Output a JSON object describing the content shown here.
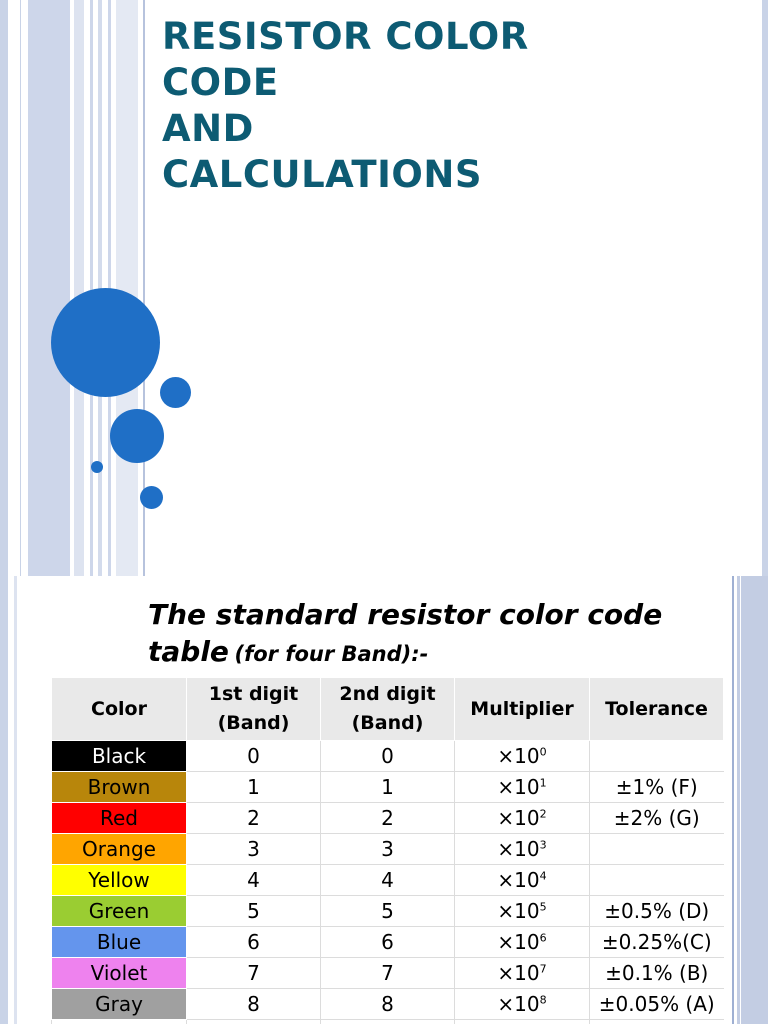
{
  "slide1": {
    "title_lines": [
      "RESISTOR COLOR",
      "CODE",
      "AND",
      "CALCULATIONS"
    ],
    "accent_color": "#1f6fc6",
    "title_color": "#0d5b73"
  },
  "slide2": {
    "heading_main": "The standard resistor color code table",
    "heading_sub": "(for four Band):-",
    "table": {
      "headers": [
        [
          "Color"
        ],
        [
          "1st digit",
          "(Band)"
        ],
        [
          "2nd digit",
          "(Band)"
        ],
        [
          "Multiplier"
        ],
        [
          "Tolerance"
        ]
      ],
      "multiplier_base": "×10",
      "rows": [
        {
          "color": "Black",
          "swatch": "#000000",
          "text_color": "#ffffff",
          "d1": "0",
          "d2": "0",
          "exp": "0",
          "tol": ""
        },
        {
          "color": "Brown",
          "swatch": "#b8860b",
          "text_color": "#000000",
          "d1": "1",
          "d2": "1",
          "exp": "1",
          "tol": "±1% (F)"
        },
        {
          "color": "Red",
          "swatch": "#ff0000",
          "text_color": "#000000",
          "d1": "2",
          "d2": "2",
          "exp": "2",
          "tol": "±2% (G)"
        },
        {
          "color": "Orange",
          "swatch": "#ffa500",
          "text_color": "#000000",
          "d1": "3",
          "d2": "3",
          "exp": "3",
          "tol": ""
        },
        {
          "color": "Yellow",
          "swatch": "#ffff00",
          "text_color": "#000000",
          "d1": "4",
          "d2": "4",
          "exp": "4",
          "tol": ""
        },
        {
          "color": "Green",
          "swatch": "#9acd32",
          "text_color": "#000000",
          "d1": "5",
          "d2": "5",
          "exp": "5",
          "tol": "±0.5% (D)"
        },
        {
          "color": "Blue",
          "swatch": "#6495ed",
          "text_color": "#000000",
          "d1": "6",
          "d2": "6",
          "exp": "6",
          "tol": "±0.25%(C)"
        },
        {
          "color": "Violet",
          "swatch": "#ee82ee",
          "text_color": "#000000",
          "d1": "7",
          "d2": "7",
          "exp": "7",
          "tol": "±0.1% (B)"
        },
        {
          "color": "Gray",
          "swatch": "#a0a0a0",
          "text_color": "#000000",
          "d1": "8",
          "d2": "8",
          "exp": "8",
          "tol": "±0.05% (A)"
        }
      ]
    }
  }
}
